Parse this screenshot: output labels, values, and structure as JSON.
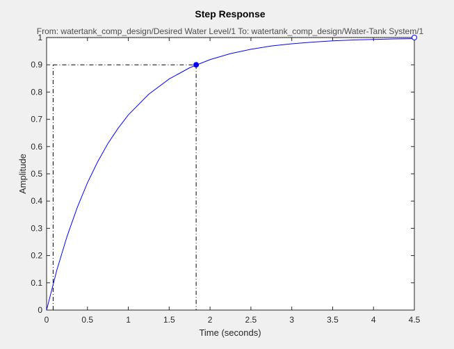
{
  "chart_data": {
    "type": "line",
    "title": "Step Response",
    "subtitle": "From: watertank_comp_design/Desired  Water Level/1  To: watertank_comp_design/Water-Tank System/1",
    "xlabel": "Time (seconds)",
    "ylabel": "Amplitude",
    "x": [
      0,
      0.125,
      0.25,
      0.375,
      0.5,
      0.625,
      0.75,
      0.875,
      1,
      1.25,
      1.5,
      1.75,
      2,
      2.25,
      2.5,
      2.75,
      3,
      3.25,
      3.5,
      3.75,
      4,
      4.25,
      4.5
    ],
    "series": [
      {
        "color": "#0000ff",
        "values": [
          0,
          0.146,
          0.27,
          0.376,
          0.467,
          0.544,
          0.611,
          0.667,
          0.716,
          0.792,
          0.848,
          0.889,
          0.919,
          0.941,
          0.957,
          0.969,
          0.977,
          0.983,
          0.988,
          0.991,
          0.993,
          0.995,
          0.996
        ]
      }
    ],
    "xlim": [
      0,
      4.5
    ],
    "ylim": [
      0,
      1
    ],
    "xticks": [
      0,
      0.5,
      1,
      1.5,
      2,
      2.5,
      3,
      3.5,
      4,
      4.5
    ],
    "yticks": [
      0,
      0.1,
      0.2,
      0.3,
      0.4,
      0.5,
      0.6,
      0.7,
      0.8,
      0.9,
      1
    ],
    "rise_time": {
      "low_time": 0.08,
      "high_time": 1.83,
      "high_value": 0.9
    },
    "final_value": {
      "time": 4.5,
      "value": 1
    }
  }
}
